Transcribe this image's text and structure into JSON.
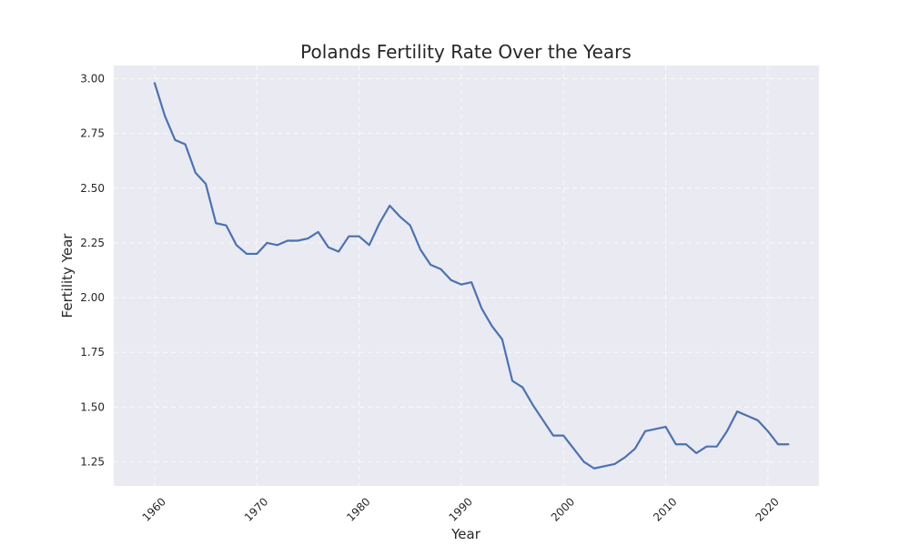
{
  "chart_data": {
    "type": "line",
    "title": "Polands Fertility Rate Over the Years",
    "xlabel": "Year",
    "ylabel": "Fertility Year",
    "xlim": [
      1956,
      2025
    ],
    "ylim": [
      1.14,
      3.06
    ],
    "grid": true,
    "x_ticks": [
      1960,
      1970,
      1980,
      1990,
      2000,
      2010,
      2020
    ],
    "y_ticks": [
      "1.25",
      "1.50",
      "1.75",
      "2.00",
      "2.25",
      "2.50",
      "2.75",
      "3.00"
    ],
    "colors": {
      "plot_bg": "#eaeaf2",
      "line": "#4c72b0"
    },
    "series": [
      {
        "x": [
          1960,
          1961,
          1962,
          1963,
          1964,
          1965,
          1966,
          1967,
          1968,
          1969,
          1970,
          1971,
          1972,
          1973,
          1974,
          1975,
          1976,
          1977,
          1978,
          1979,
          1980,
          1981,
          1982,
          1983,
          1984,
          1985,
          1986,
          1987,
          1988,
          1989,
          1990,
          1991,
          1992,
          1993,
          1994,
          1995,
          1996,
          1997,
          1998,
          1999,
          2000,
          2001,
          2002,
          2003,
          2004,
          2005,
          2006,
          2007,
          2008,
          2009,
          2010,
          2011,
          2012,
          2013,
          2014,
          2015,
          2016,
          2017,
          2018,
          2019,
          2020,
          2021,
          2022
        ],
        "values": [
          2.98,
          2.83,
          2.72,
          2.7,
          2.57,
          2.52,
          2.34,
          2.33,
          2.24,
          2.2,
          2.2,
          2.25,
          2.24,
          2.26,
          2.26,
          2.27,
          2.3,
          2.23,
          2.21,
          2.28,
          2.28,
          2.24,
          2.34,
          2.42,
          2.37,
          2.33,
          2.22,
          2.15,
          2.13,
          2.08,
          2.06,
          2.07,
          1.95,
          1.87,
          1.81,
          1.62,
          1.59,
          1.51,
          1.44,
          1.37,
          1.37,
          1.31,
          1.25,
          1.22,
          1.23,
          1.24,
          1.27,
          1.31,
          1.39,
          1.4,
          1.41,
          1.33,
          1.33,
          1.29,
          1.32,
          1.32,
          1.39,
          1.48,
          1.46,
          1.44,
          1.39,
          1.33,
          1.33
        ]
      }
    ]
  }
}
